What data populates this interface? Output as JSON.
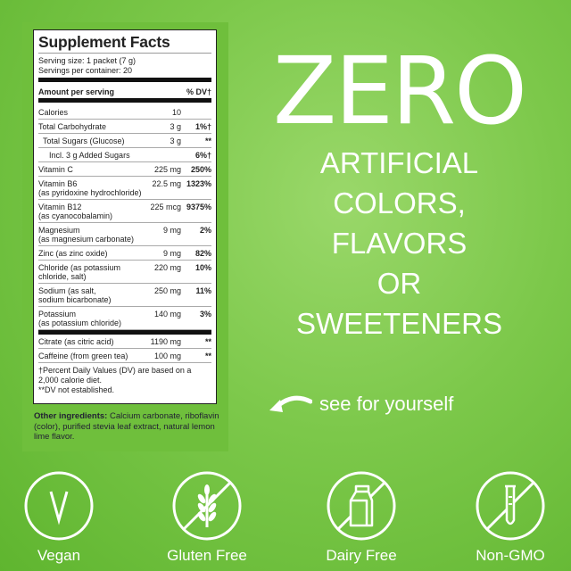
{
  "facts": {
    "title": "Supplement Facts",
    "serving_size": "Serving size: 1 packet (7 g)",
    "servings": "Servings per container: 20",
    "header": {
      "name": "Amount per serving",
      "dv": "% DV†"
    },
    "rows": [
      {
        "name": "Calories",
        "amount": "10",
        "dv": "",
        "indent": 0
      },
      {
        "name": "Total Carbohydrate",
        "amount": "3 g",
        "dv": "1%†",
        "indent": 0
      },
      {
        "name": "Total Sugars (Glucose)",
        "amount": "3 g",
        "dv": "**",
        "indent": 1
      },
      {
        "name": "Incl. 3 g Added Sugars",
        "amount": "",
        "dv": "6%†",
        "indent": 2
      },
      {
        "name": "Vitamin C",
        "amount": "225 mg",
        "dv": "250%",
        "indent": 0
      },
      {
        "name": "Vitamin B6",
        "sub": "(as pyridoxine hydrochloride)",
        "amount": "22.5 mg",
        "dv": "1323%",
        "indent": 0
      },
      {
        "name": "Vitamin B12",
        "sub": "(as cyanocobalamin)",
        "amount": "225 mcg",
        "dv": "9375%",
        "indent": 0
      },
      {
        "name": "Magnesium",
        "sub": "(as magnesium carbonate)",
        "amount": "9 mg",
        "dv": "2%",
        "indent": 0
      },
      {
        "name": "Zinc (as zinc oxide)",
        "amount": "9 mg",
        "dv": "82%",
        "indent": 0
      },
      {
        "name": "Chloride (as potassium",
        "sub": "chloride, salt)",
        "amount": "220 mg",
        "dv": "10%",
        "indent": 0
      },
      {
        "name": "Sodium (as salt,",
        "sub": "sodium bicarbonate)",
        "amount": "250 mg",
        "dv": "11%",
        "indent": 0
      },
      {
        "name": "Potassium",
        "sub": "(as potassium chloride)",
        "amount": "140 mg",
        "dv": "3%",
        "indent": 0
      }
    ],
    "rows2": [
      {
        "name": "Citrate (as citric acid)",
        "amount": "1190 mg",
        "dv": "**"
      },
      {
        "name": "Caffeine (from green tea)",
        "amount": "100 mg",
        "dv": "**"
      }
    ],
    "footnote1": "†Percent Daily Values (DV) are based on a 2,000 calorie diet.",
    "footnote2": "**DV not established."
  },
  "other": {
    "label": "Other ingredients:",
    "text": " Calcium carbonate, riboflavin (color), purified stevia leaf extract, natural lemon lime flavor."
  },
  "headline": {
    "zero": "ZERO",
    "lines": [
      "ARTIFICIAL",
      "COLORS,",
      "FLAVORS",
      "OR",
      "SWEETENERS"
    ]
  },
  "cta": {
    "text": "see for yourself",
    "icon": "curved-arrow-icon"
  },
  "badges": [
    {
      "label": "Vegan",
      "icon": "vegan-v-icon"
    },
    {
      "label": "Gluten Free",
      "icon": "no-wheat-icon"
    },
    {
      "label": "Dairy Free",
      "icon": "no-milk-carton-icon"
    },
    {
      "label": "Non-GMO",
      "icon": "no-test-tube-icon"
    }
  ],
  "colors": {
    "background": "#7cc84a",
    "panel": "#6fbf3c",
    "text": "#ffffff"
  }
}
